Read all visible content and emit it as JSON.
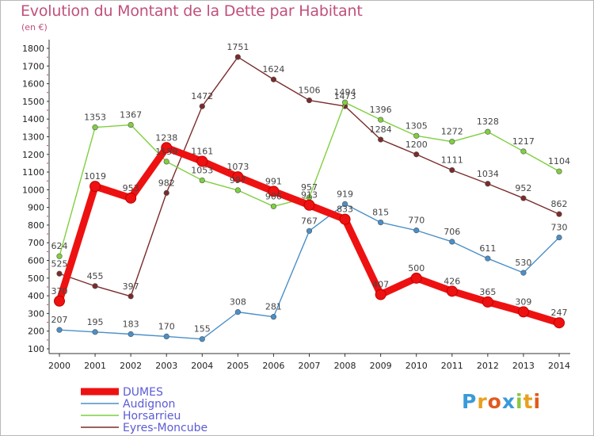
{
  "header": {
    "title": "Evolution du Montant de la Dette par Habitant",
    "unit": "(en €)"
  },
  "logo": {
    "text": "Proxiti",
    "colors": [
      "#3a9ad9",
      "#e8a020",
      "#e05a1e",
      "#3a9ad9",
      "#8cc63f",
      "#e8a020",
      "#e05a1e"
    ]
  },
  "chart_data": {
    "type": "line",
    "x": [
      "2000",
      "2001",
      "2002",
      "2003",
      "2004",
      "2005",
      "2006",
      "2007",
      "2008",
      "2009",
      "2010",
      "2011",
      "2012",
      "2013",
      "2014"
    ],
    "ylim": [
      100,
      1800
    ],
    "yticks": [
      100,
      200,
      300,
      400,
      500,
      600,
      700,
      800,
      900,
      1000,
      1100,
      1200,
      1300,
      1400,
      1500,
      1600,
      1700,
      1800
    ],
    "grid": false,
    "legend_position": "bottom-left",
    "series": [
      {
        "name": "DUMES",
        "color": "#ee1111",
        "values": [
          370,
          1019,
          953,
          1238,
          1161,
          1073,
          991,
          913,
          833,
          407,
          500,
          426,
          365,
          309,
          247
        ]
      },
      {
        "name": "Audignon",
        "color": "#4a8fc8",
        "values": [
          207,
          195,
          183,
          170,
          155,
          308,
          281,
          767,
          919,
          815,
          770,
          706,
          611,
          530,
          730
        ]
      },
      {
        "name": "Horsarrieu",
        "color": "#7fcf3f",
        "values": [
          624,
          1353,
          1367,
          1159,
          1053,
          997,
          906,
          957,
          1494,
          1396,
          1305,
          1272,
          1328,
          1217,
          1104
        ]
      },
      {
        "name": "Eyres-Moncube",
        "color": "#7a2b2b",
        "values": [
          525,
          455,
          397,
          982,
          1472,
          1751,
          1624,
          1506,
          1473,
          1284,
          1200,
          1111,
          1034,
          952,
          862
        ]
      }
    ]
  }
}
